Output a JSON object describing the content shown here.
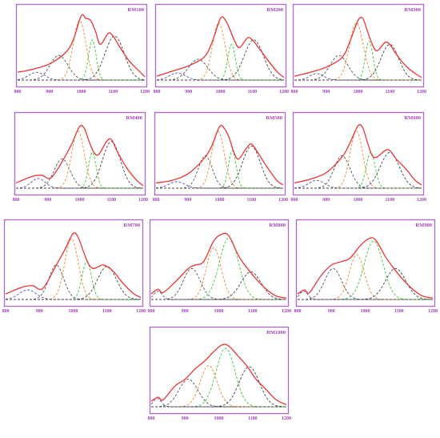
{
  "chart_data": [
    {
      "type": "line",
      "label": "RM100",
      "x_ticks": [
        "800",
        "900",
        "1000",
        "1100",
        "1200"
      ],
      "xlim": [
        800,
        1200
      ],
      "envelope": {
        "color": "#ee3333",
        "points": [
          [
            800,
            0.12
          ],
          [
            850,
            0.17
          ],
          [
            900,
            0.25
          ],
          [
            950,
            0.42
          ],
          [
            975,
            0.62
          ],
          [
            1000,
            0.99
          ],
          [
            1015,
            0.95
          ],
          [
            1030,
            0.92
          ],
          [
            1045,
            0.75
          ],
          [
            1060,
            0.55
          ],
          [
            1085,
            0.72
          ],
          [
            1100,
            0.68
          ],
          [
            1120,
            0.52
          ],
          [
            1150,
            0.3
          ],
          [
            1180,
            0.15
          ],
          [
            1200,
            0.05
          ]
        ]
      },
      "components": [
        {
          "color": "#5555aa",
          "center": 860,
          "height": 0.12,
          "width": 25
        },
        {
          "color": "#555555",
          "center": 930,
          "height": 0.38,
          "width": 28
        },
        {
          "color": "#ee8833",
          "center": 995,
          "height": 0.92,
          "width": 20
        },
        {
          "color": "#33cc33",
          "center": 1035,
          "height": 0.62,
          "width": 12
        },
        {
          "color": "#444444",
          "center": 1105,
          "height": 0.68,
          "width": 30
        }
      ]
    },
    {
      "type": "line",
      "label": "RM200",
      "x_ticks": [
        "800",
        "900",
        "1000",
        "1100",
        "1200"
      ],
      "xlim": [
        800,
        1200
      ],
      "envelope": {
        "color": "#ee3333",
        "points": [
          [
            800,
            0.06
          ],
          [
            850,
            0.14
          ],
          [
            900,
            0.22
          ],
          [
            950,
            0.36
          ],
          [
            975,
            0.6
          ],
          [
            1000,
            0.95
          ],
          [
            1015,
            0.93
          ],
          [
            1030,
            0.78
          ],
          [
            1045,
            0.6
          ],
          [
            1060,
            0.5
          ],
          [
            1085,
            0.65
          ],
          [
            1100,
            0.62
          ],
          [
            1120,
            0.5
          ],
          [
            1150,
            0.3
          ],
          [
            1180,
            0.12
          ],
          [
            1200,
            0.04
          ]
        ]
      },
      "components": [
        {
          "color": "#5555aa",
          "center": 865,
          "height": 0.11,
          "width": 25
        },
        {
          "color": "#555555",
          "center": 930,
          "height": 0.32,
          "width": 30
        },
        {
          "color": "#ee8833",
          "center": 995,
          "height": 0.88,
          "width": 20
        },
        {
          "color": "#33cc33",
          "center": 1035,
          "height": 0.55,
          "width": 12
        },
        {
          "color": "#444444",
          "center": 1105,
          "height": 0.62,
          "width": 30
        }
      ]
    },
    {
      "type": "line",
      "label": "RM300",
      "x_ticks": [
        "800",
        "900",
        "1000",
        "1100",
        "1200"
      ],
      "xlim": [
        800,
        1200
      ],
      "envelope": {
        "color": "#ee3333",
        "points": [
          [
            800,
            0.06
          ],
          [
            850,
            0.12
          ],
          [
            900,
            0.2
          ],
          [
            950,
            0.35
          ],
          [
            975,
            0.6
          ],
          [
            1000,
            0.92
          ],
          [
            1015,
            0.95
          ],
          [
            1030,
            0.75
          ],
          [
            1045,
            0.55
          ],
          [
            1060,
            0.45
          ],
          [
            1085,
            0.58
          ],
          [
            1100,
            0.55
          ],
          [
            1120,
            0.4
          ],
          [
            1150,
            0.22
          ],
          [
            1180,
            0.1
          ],
          [
            1200,
            0.04
          ]
        ]
      },
      "components": [
        {
          "color": "#5555aa",
          "center": 870,
          "height": 0.1,
          "width": 22
        },
        {
          "color": "#555555",
          "center": 940,
          "height": 0.38,
          "width": 28
        },
        {
          "color": "#ee8833",
          "center": 995,
          "height": 0.88,
          "width": 22
        },
        {
          "color": "#33cc33",
          "center": 1035,
          "height": 0.6,
          "width": 12
        },
        {
          "color": "#444444",
          "center": 1100,
          "height": 0.55,
          "width": 28
        }
      ]
    },
    {
      "type": "line",
      "label": "RM400",
      "x_ticks": [
        "800",
        "900",
        "1000",
        "1100",
        "1200"
      ],
      "xlim": [
        800,
        1200
      ],
      "envelope": {
        "color": "#ee3333",
        "points": [
          [
            800,
            0.08
          ],
          [
            850,
            0.18
          ],
          [
            880,
            0.2
          ],
          [
            910,
            0.16
          ],
          [
            950,
            0.45
          ],
          [
            975,
            0.68
          ],
          [
            1000,
            0.95
          ],
          [
            1015,
            0.92
          ],
          [
            1030,
            0.72
          ],
          [
            1045,
            0.55
          ],
          [
            1060,
            0.52
          ],
          [
            1085,
            0.72
          ],
          [
            1100,
            0.75
          ],
          [
            1120,
            0.55
          ],
          [
            1150,
            0.3
          ],
          [
            1180,
            0.12
          ],
          [
            1200,
            0.04
          ]
        ]
      },
      "components": [
        {
          "color": "#5555aa",
          "center": 870,
          "height": 0.15,
          "width": 22
        },
        {
          "color": "#555555",
          "center": 945,
          "height": 0.45,
          "width": 25
        },
        {
          "color": "#ee8833",
          "center": 995,
          "height": 0.88,
          "width": 20
        },
        {
          "color": "#33cc33",
          "center": 1040,
          "height": 0.55,
          "width": 12
        },
        {
          "color": "#444444",
          "center": 1100,
          "height": 0.72,
          "width": 28
        }
      ]
    },
    {
      "type": "line",
      "label": "RM500",
      "x_ticks": [
        "800",
        "900",
        "1000",
        "1100",
        "1200"
      ],
      "xlim": [
        800,
        1200
      ],
      "envelope": {
        "color": "#ee3333",
        "points": [
          [
            800,
            0.08
          ],
          [
            850,
            0.12
          ],
          [
            900,
            0.22
          ],
          [
            950,
            0.45
          ],
          [
            975,
            0.65
          ],
          [
            1000,
            0.95
          ],
          [
            1015,
            0.92
          ],
          [
            1030,
            0.78
          ],
          [
            1045,
            0.55
          ],
          [
            1060,
            0.45
          ],
          [
            1085,
            0.62
          ],
          [
            1100,
            0.68
          ],
          [
            1120,
            0.55
          ],
          [
            1150,
            0.32
          ],
          [
            1180,
            0.12
          ],
          [
            1200,
            0.05
          ]
        ]
      },
      "components": [
        {
          "color": "#5555aa",
          "center": 865,
          "height": 0.1,
          "width": 25
        },
        {
          "color": "#555555",
          "center": 955,
          "height": 0.5,
          "width": 22
        },
        {
          "color": "#ee8833",
          "center": 995,
          "height": 0.88,
          "width": 20
        },
        {
          "color": "#33cc33",
          "center": 1040,
          "height": 0.58,
          "width": 12
        },
        {
          "color": "#444444",
          "center": 1100,
          "height": 0.65,
          "width": 28
        }
      ]
    },
    {
      "type": "line",
      "label": "RM600",
      "x_ticks": [
        "800",
        "900",
        "1000",
        "1100",
        "1200"
      ],
      "xlim": [
        800,
        1200
      ],
      "envelope": {
        "color": "#ee3333",
        "points": [
          [
            800,
            0.08
          ],
          [
            850,
            0.14
          ],
          [
            900,
            0.24
          ],
          [
            950,
            0.48
          ],
          [
            975,
            0.7
          ],
          [
            1000,
            0.96
          ],
          [
            1015,
            0.93
          ],
          [
            1030,
            0.7
          ],
          [
            1045,
            0.5
          ],
          [
            1060,
            0.48
          ],
          [
            1085,
            0.58
          ],
          [
            1100,
            0.58
          ],
          [
            1120,
            0.45
          ],
          [
            1150,
            0.3
          ],
          [
            1180,
            0.12
          ],
          [
            1200,
            0.05
          ]
        ]
      },
      "components": [
        {
          "color": "#5555aa",
          "center": 870,
          "height": 0.12,
          "width": 25
        },
        {
          "color": "#555555",
          "center": 950,
          "height": 0.5,
          "width": 25
        },
        {
          "color": "#ee8833",
          "center": 995,
          "height": 0.88,
          "width": 20
        },
        {
          "color": "#33cc33",
          "center": 1040,
          "height": 0.55,
          "width": 14
        },
        {
          "color": "#444444",
          "center": 1100,
          "height": 0.55,
          "width": 30
        }
      ]
    },
    {
      "type": "line",
      "label": "RM700",
      "x_ticks": [
        "800",
        "900",
        "1000",
        "1100",
        "1200"
      ],
      "xlim": [
        800,
        1200
      ],
      "envelope": {
        "color": "#ee3333",
        "points": [
          [
            800,
            0.08
          ],
          [
            850,
            0.18
          ],
          [
            880,
            0.2
          ],
          [
            910,
            0.16
          ],
          [
            950,
            0.5
          ],
          [
            975,
            0.72
          ],
          [
            1000,
            0.96
          ],
          [
            1015,
            0.9
          ],
          [
            1030,
            0.7
          ],
          [
            1045,
            0.52
          ],
          [
            1060,
            0.45
          ],
          [
            1085,
            0.5
          ],
          [
            1100,
            0.48
          ],
          [
            1120,
            0.4
          ],
          [
            1150,
            0.22
          ],
          [
            1180,
            0.08
          ],
          [
            1200,
            0.03
          ]
        ]
      },
      "components": [
        {
          "color": "#5555aa",
          "center": 865,
          "height": 0.14,
          "width": 25
        },
        {
          "color": "#555555",
          "center": 950,
          "height": 0.5,
          "width": 22
        },
        {
          "color": "#ee8833",
          "center": 995,
          "height": 0.88,
          "width": 20
        },
        {
          "color": "#33cc33",
          "center": 1040,
          "height": 0.55,
          "width": 14
        },
        {
          "color": "#444444",
          "center": 1100,
          "height": 0.48,
          "width": 28
        }
      ]
    },
    {
      "type": "line",
      "label": "RM800",
      "x_ticks": [
        "800",
        "900",
        "1000",
        "1100",
        "1200"
      ],
      "xlim": [
        800,
        1200
      ],
      "envelope": {
        "color": "#ee3333",
        "points": [
          [
            800,
            0.08
          ],
          [
            820,
            0.15
          ],
          [
            835,
            0.1
          ],
          [
            870,
            0.25
          ],
          [
            910,
            0.45
          ],
          [
            930,
            0.5
          ],
          [
            955,
            0.55
          ],
          [
            985,
            0.85
          ],
          [
            1010,
            0.95
          ],
          [
            1030,
            0.92
          ],
          [
            1060,
            0.62
          ],
          [
            1085,
            0.45
          ],
          [
            1110,
            0.3
          ],
          [
            1140,
            0.15
          ],
          [
            1170,
            0.05
          ],
          [
            1200,
            0.02
          ]
        ]
      },
      "components": [
        {
          "color": "#5555aa",
          "center": 820,
          "height": 0.12,
          "width": 12
        },
        {
          "color": "#555555",
          "center": 920,
          "height": 0.45,
          "width": 25
        },
        {
          "color": "#ee8833",
          "center": 985,
          "height": 0.75,
          "width": 22
        },
        {
          "color": "#33cc33",
          "center": 1030,
          "height": 0.9,
          "width": 28
        },
        {
          "color": "#444444",
          "center": 1095,
          "height": 0.4,
          "width": 30
        }
      ]
    },
    {
      "type": "line",
      "label": "RM900",
      "x_ticks": [
        "800",
        "900",
        "1000",
        "1100",
        "1200"
      ],
      "xlim": [
        800,
        1200
      ],
      "envelope": {
        "color": "#ee3333",
        "points": [
          [
            800,
            0.08
          ],
          [
            820,
            0.14
          ],
          [
            835,
            0.1
          ],
          [
            870,
            0.35
          ],
          [
            900,
            0.5
          ],
          [
            930,
            0.55
          ],
          [
            955,
            0.6
          ],
          [
            985,
            0.78
          ],
          [
            1010,
            0.88
          ],
          [
            1030,
            0.87
          ],
          [
            1060,
            0.62
          ],
          [
            1085,
            0.45
          ],
          [
            1110,
            0.3
          ],
          [
            1140,
            0.15
          ],
          [
            1170,
            0.05
          ],
          [
            1200,
            0.02
          ]
        ]
      },
      "components": [
        {
          "color": "#5555aa",
          "center": 818,
          "height": 0.12,
          "width": 12
        },
        {
          "color": "#555555",
          "center": 905,
          "height": 0.45,
          "width": 25
        },
        {
          "color": "#ee8833",
          "center": 975,
          "height": 0.65,
          "width": 22
        },
        {
          "color": "#33cc33",
          "center": 1025,
          "height": 0.85,
          "width": 28
        },
        {
          "color": "#444444",
          "center": 1090,
          "height": 0.45,
          "width": 30
        }
      ]
    },
    {
      "type": "line",
      "label": "RM1000",
      "x_ticks": [
        "800",
        "900",
        "1000",
        "1100",
        "1200"
      ],
      "xlim": [
        800,
        1200
      ],
      "envelope": {
        "color": "#ee3333",
        "points": [
          [
            800,
            0.08
          ],
          [
            820,
            0.14
          ],
          [
            835,
            0.1
          ],
          [
            870,
            0.3
          ],
          [
            900,
            0.4
          ],
          [
            930,
            0.55
          ],
          [
            955,
            0.65
          ],
          [
            985,
            0.8
          ],
          [
            1010,
            0.9
          ],
          [
            1030,
            0.88
          ],
          [
            1060,
            0.72
          ],
          [
            1085,
            0.58
          ],
          [
            1110,
            0.4
          ],
          [
            1140,
            0.25
          ],
          [
            1170,
            0.1
          ],
          [
            1200,
            0.03
          ]
        ]
      },
      "components": [
        {
          "color": "#5555aa",
          "center": 818,
          "height": 0.12,
          "width": 12
        },
        {
          "color": "#555555",
          "center": 910,
          "height": 0.4,
          "width": 28
        },
        {
          "color": "#ee8833",
          "center": 970,
          "height": 0.6,
          "width": 25
        },
        {
          "color": "#33cc33",
          "center": 1020,
          "height": 0.85,
          "width": 28
        },
        {
          "color": "#444444",
          "center": 1090,
          "height": 0.58,
          "width": 30
        }
      ]
    }
  ]
}
